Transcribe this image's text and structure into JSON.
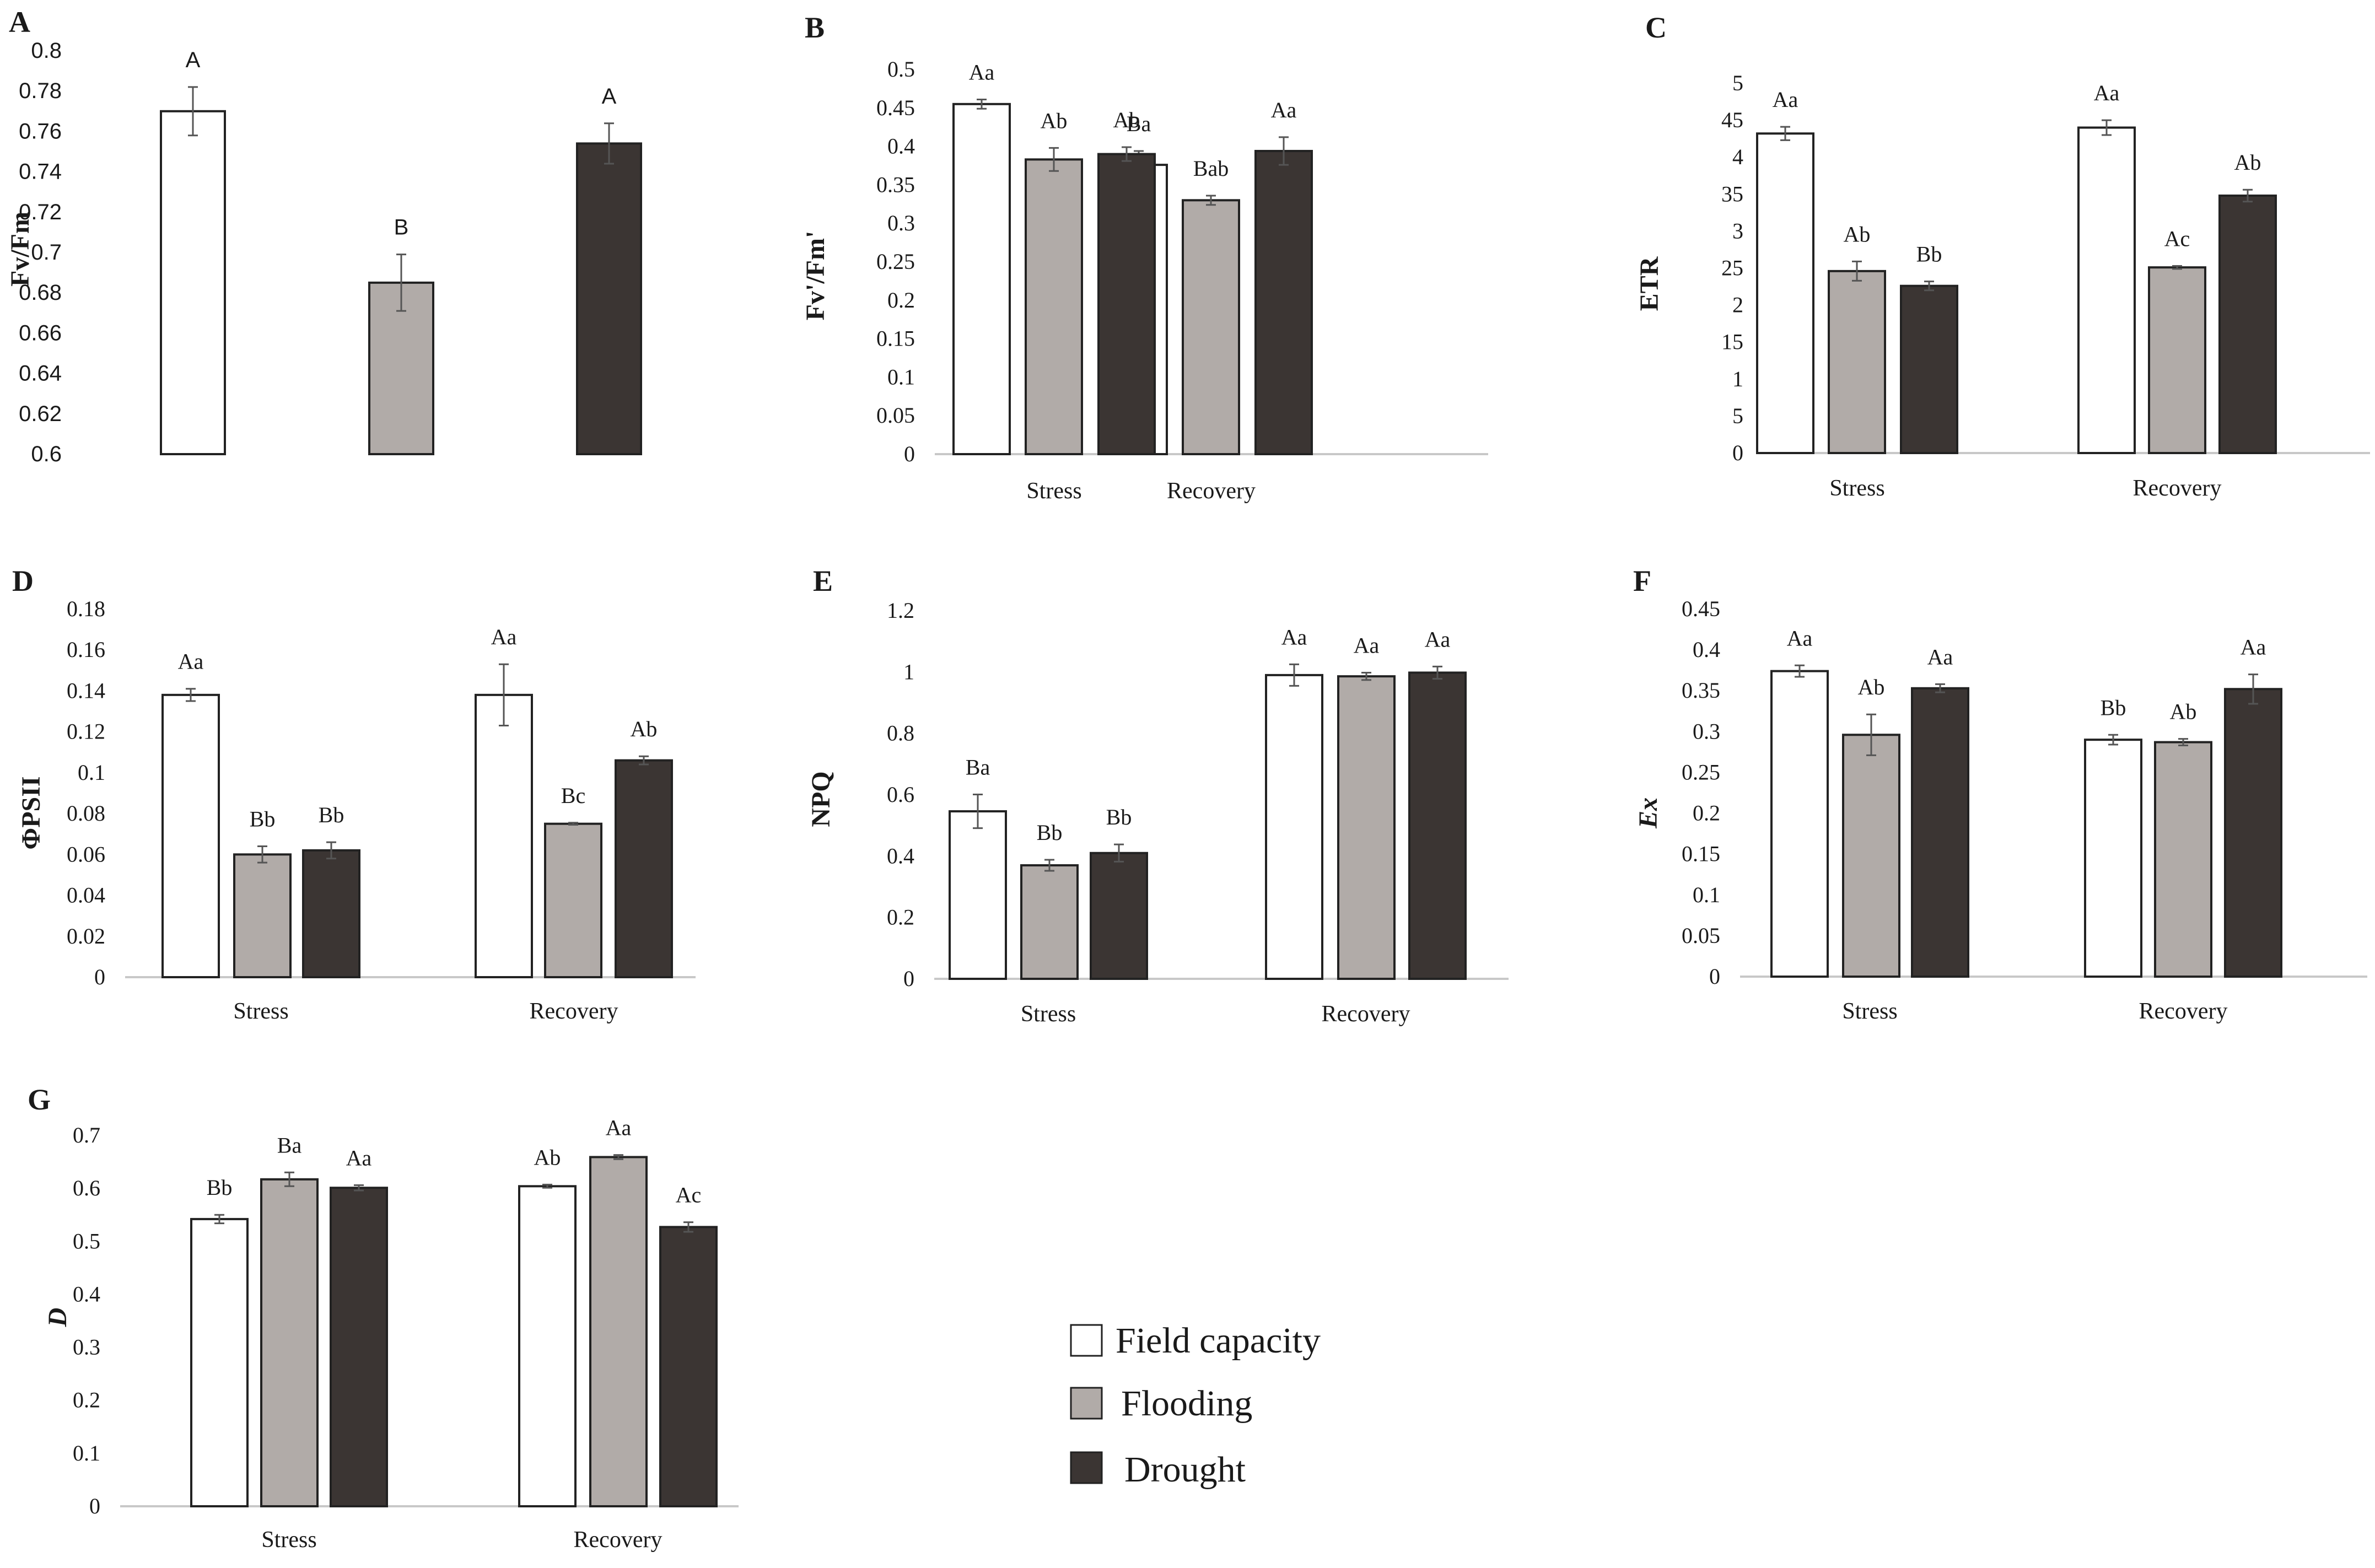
{
  "figure": {
    "legend": [
      {
        "label": "Field capacity",
        "color": "#ffffff"
      },
      {
        "label": "Flooding",
        "color": "#b1aba8"
      },
      {
        "label": "Drought",
        "color": "#3b3533"
      }
    ],
    "colors": {
      "field_capacity": "#ffffff",
      "flooding": "#b1aba8",
      "drought": "#3b3533",
      "axis": "#c8c8c8",
      "outline": "#222222",
      "error_bar": "#555555"
    }
  },
  "chart_data": [
    {
      "panel": "A",
      "type": "bar",
      "ylabel": "Fv/Fm",
      "ylim": [
        0.6,
        0.8
      ],
      "ystep": 0.02,
      "decimals": 2,
      "categories": [
        ""
      ],
      "series": [
        {
          "name": "Field capacity",
          "values": [
            0.77
          ],
          "errors": [
            0.012
          ],
          "labels": [
            "A"
          ]
        },
        {
          "name": "Flooding",
          "values": [
            0.685
          ],
          "errors": [
            0.014
          ],
          "labels": [
            "B"
          ]
        },
        {
          "name": "Drought",
          "values": [
            0.754
          ],
          "errors": [
            0.01
          ],
          "labels": [
            "A"
          ]
        }
      ]
    },
    {
      "panel": "B",
      "type": "bar",
      "ylabel": "Fv'/Fm'",
      "ylim": [
        0,
        0.5
      ],
      "ystep": 0.05,
      "decimals": 2,
      "categories": [
        "Stress",
        "Recovery"
      ],
      "series": [
        {
          "name": "Field capacity",
          "values": [
            0.455,
            0.376
          ],
          "errors": [
            0.006,
            0.018
          ],
          "labels": [
            "Aa",
            "Ba"
          ]
        },
        {
          "name": "Flooding",
          "values": [
            0.383,
            0.33
          ],
          "errors": [
            0.015,
            0.006
          ],
          "labels": [
            "Ab",
            "Bab"
          ]
        },
        {
          "name": "Drought",
          "values": [
            0.39,
            0.394
          ],
          "errors": [
            0.009,
            0.018
          ],
          "labels": [
            "Ab",
            "Aa"
          ]
        }
      ]
    },
    {
      "panel": "C",
      "type": "bar",
      "ylabel": "ETR",
      "ylim": [
        0,
        50
      ],
      "ystep": 5,
      "decimals": 0,
      "categories": [
        "Stress",
        "Recovery"
      ],
      "series": [
        {
          "name": "Field capacity",
          "values": [
            43.2,
            44.0
          ],
          "errors": [
            0.9,
            1.0
          ],
          "labels": [
            "Aa",
            "Aa"
          ]
        },
        {
          "name": "Flooding",
          "values": [
            24.6,
            25.1
          ],
          "errors": [
            1.3,
            0.2
          ],
          "labels": [
            "Ab",
            "Ac"
          ]
        },
        {
          "name": "Drought",
          "values": [
            22.6,
            34.8
          ],
          "errors": [
            0.6,
            0.8
          ],
          "labels": [
            "Bb",
            "Ab"
          ]
        }
      ]
    },
    {
      "panel": "D",
      "type": "bar",
      "ylabel": "ΦPSII",
      "ylim": [
        0,
        0.18
      ],
      "ystep": 0.02,
      "decimals": 2,
      "categories": [
        "Stress",
        "Recovery"
      ],
      "series": [
        {
          "name": "Field capacity",
          "values": [
            0.138,
            0.138
          ],
          "errors": [
            0.003,
            0.015
          ],
          "labels": [
            "Aa",
            "Aa"
          ]
        },
        {
          "name": "Flooding",
          "values": [
            0.06,
            0.075
          ],
          "errors": [
            0.004,
            0.0005
          ],
          "labels": [
            "Bb",
            "Bc"
          ]
        },
        {
          "name": "Drought",
          "values": [
            0.062,
            0.106
          ],
          "errors": [
            0.004,
            0.002
          ],
          "labels": [
            "Bb",
            "Ab"
          ]
        }
      ]
    },
    {
      "panel": "E",
      "type": "bar",
      "ylabel": "NPQ",
      "ylim": [
        0,
        1.2
      ],
      "ystep": 0.2,
      "decimals": 1,
      "categories": [
        "Stress",
        "Recovery"
      ],
      "series": [
        {
          "name": "Field capacity",
          "values": [
            0.546,
            0.99
          ],
          "errors": [
            0.055,
            0.035
          ],
          "labels": [
            "Ba",
            "Aa"
          ]
        },
        {
          "name": "Flooding",
          "values": [
            0.37,
            0.986
          ],
          "errors": [
            0.018,
            0.012
          ],
          "labels": [
            "Bb",
            "Aa"
          ]
        },
        {
          "name": "Drought",
          "values": [
            0.41,
            0.998
          ],
          "errors": [
            0.028,
            0.02
          ],
          "labels": [
            "Bb",
            "Aa"
          ]
        }
      ]
    },
    {
      "panel": "F",
      "type": "bar",
      "ylabel": "Ex",
      "ylim": [
        0,
        0.45
      ],
      "ystep": 0.05,
      "decimals": 2,
      "categories": [
        "Stress",
        "Recovery"
      ],
      "series": [
        {
          "name": "Field capacity",
          "values": [
            0.374,
            0.29
          ],
          "errors": [
            0.007,
            0.006
          ],
          "labels": [
            "Aa",
            "Bb"
          ]
        },
        {
          "name": "Flooding",
          "values": [
            0.296,
            0.287
          ],
          "errors": [
            0.025,
            0.004
          ],
          "labels": [
            "Ab",
            "Ab"
          ]
        },
        {
          "name": "Drought",
          "values": [
            0.353,
            0.352
          ],
          "errors": [
            0.005,
            0.018
          ],
          "labels": [
            "Aa",
            "Aa"
          ]
        }
      ]
    },
    {
      "panel": "G",
      "type": "bar",
      "ylabel": "D",
      "ylim": [
        0,
        0.7
      ],
      "ystep": 0.1,
      "decimals": 1,
      "categories": [
        "Stress",
        "Recovery"
      ],
      "series": [
        {
          "name": "Field capacity",
          "values": [
            0.542,
            0.604
          ],
          "errors": [
            0.008,
            0.003
          ],
          "labels": [
            "Bb",
            "Ab"
          ]
        },
        {
          "name": "Flooding",
          "values": [
            0.617,
            0.659
          ],
          "errors": [
            0.013,
            0.004
          ],
          "labels": [
            "Ba",
            "Aa"
          ]
        },
        {
          "name": "Drought",
          "values": [
            0.601,
            0.527
          ],
          "errors": [
            0.005,
            0.009
          ],
          "labels": [
            "Aa",
            "Ac"
          ]
        }
      ]
    }
  ]
}
